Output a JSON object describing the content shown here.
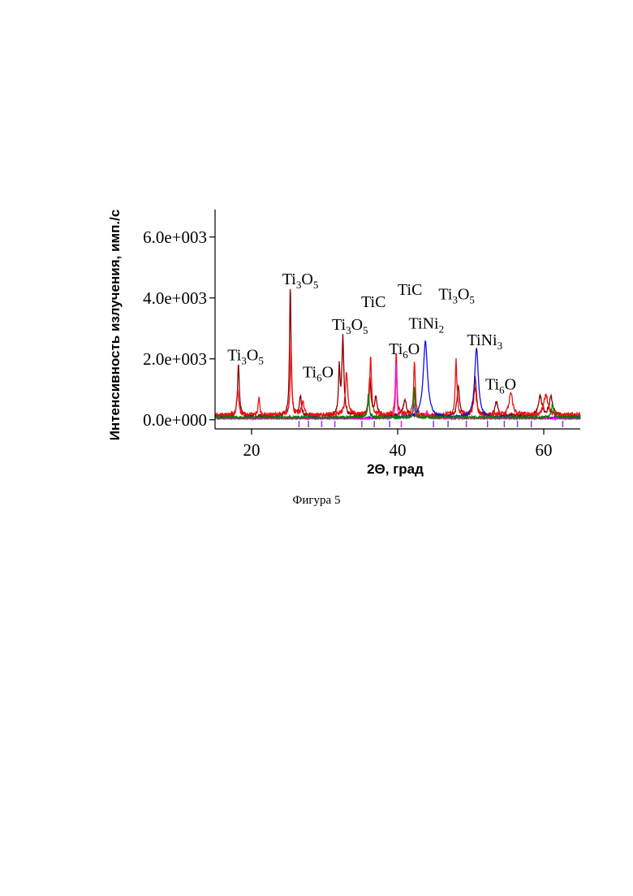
{
  "caption": "Фигура 5",
  "chart_data": {
    "type": "line",
    "xlabel": "2Θ, град",
    "ylabel": "Интенсивность излучения, имп./с",
    "xlim": [
      15,
      65
    ],
    "ylim": [
      -300,
      6900
    ],
    "x_ticks": [
      20,
      40,
      60
    ],
    "x_tick_labels": [
      "20",
      "40",
      "60"
    ],
    "y_ticks": [
      0,
      2000,
      4000,
      6000
    ],
    "y_tick_labels": [
      "0.0e+000",
      "2.0e+003",
      "4.0e+003",
      "6.0e+003"
    ],
    "grid": false,
    "colors": {
      "dark_red": "#8b0000",
      "red": "#ee1111",
      "blue": "#1010e0",
      "magenta": "#ff10d0",
      "green": "#008000",
      "purple": "#9933cc"
    },
    "series": [
      {
        "color_key": "dark_red",
        "baseline": 120,
        "peaks": [
          {
            "x": 18.2,
            "y": 1750,
            "w": 0.14
          },
          {
            "x": 25.3,
            "y": 4300,
            "w": 0.12
          },
          {
            "x": 26.7,
            "y": 700,
            "w": 0.15
          },
          {
            "x": 32.5,
            "y": 2550,
            "w": 0.16
          },
          {
            "x": 32.0,
            "y": 1550,
            "w": 0.12
          },
          {
            "x": 36.2,
            "y": 1200,
            "w": 0.18
          },
          {
            "x": 37.0,
            "y": 600,
            "w": 0.2
          },
          {
            "x": 41.0,
            "y": 500,
            "w": 0.3
          },
          {
            "x": 48.3,
            "y": 1000,
            "w": 0.2
          },
          {
            "x": 50.6,
            "y": 1300,
            "w": 0.2
          },
          {
            "x": 53.5,
            "y": 450,
            "w": 0.25
          },
          {
            "x": 59.5,
            "y": 650,
            "w": 0.3
          },
          {
            "x": 61.0,
            "y": 600,
            "w": 0.3
          }
        ]
      },
      {
        "color_key": "red",
        "baseline": 150,
        "peaks": [
          {
            "x": 18.1,
            "y": 900,
            "w": 0.15
          },
          {
            "x": 21.0,
            "y": 600,
            "w": 0.12
          },
          {
            "x": 25.4,
            "y": 2400,
            "w": 0.12
          },
          {
            "x": 27.0,
            "y": 450,
            "w": 0.2
          },
          {
            "x": 33.0,
            "y": 1400,
            "w": 0.2
          },
          {
            "x": 36.3,
            "y": 1900,
            "w": 0.15
          },
          {
            "x": 39.8,
            "y": 2100,
            "w": 0.12
          },
          {
            "x": 42.3,
            "y": 1850,
            "w": 0.12
          },
          {
            "x": 48.0,
            "y": 1800,
            "w": 0.14
          },
          {
            "x": 50.6,
            "y": 900,
            "w": 0.2
          },
          {
            "x": 55.5,
            "y": 700,
            "w": 0.3
          },
          {
            "x": 60.3,
            "y": 700,
            "w": 0.3
          }
        ]
      },
      {
        "color_key": "blue",
        "baseline": 60,
        "peaks": [
          {
            "x": 43.8,
            "y": 2500,
            "w": 0.35
          },
          {
            "x": 50.8,
            "y": 2300,
            "w": 0.3
          }
        ]
      },
      {
        "color_key": "magenta",
        "baseline": 40,
        "peaks": [
          {
            "x": 39.8,
            "y": 1900,
            "w": 0.1
          },
          {
            "x": 42.2,
            "y": 500,
            "w": 0.15
          },
          {
            "x": 44.0,
            "y": 250,
            "w": 0.2
          }
        ]
      },
      {
        "color_key": "green",
        "baseline": 80,
        "peaks": [
          {
            "x": 36.0,
            "y": 800,
            "w": 0.12
          },
          {
            "x": 42.3,
            "y": 1050,
            "w": 0.1
          },
          {
            "x": 61.2,
            "y": 450,
            "w": 0.15
          }
        ]
      }
    ],
    "reference_ticks": [
      {
        "x": 26.5,
        "color_key": "purple"
      },
      {
        "x": 27.8,
        "color_key": "purple"
      },
      {
        "x": 29.6,
        "color_key": "purple"
      },
      {
        "x": 31.4,
        "color_key": "purple"
      },
      {
        "x": 35.1,
        "color_key": "purple"
      },
      {
        "x": 36.8,
        "color_key": "purple"
      },
      {
        "x": 38.9,
        "color_key": "purple"
      },
      {
        "x": 40.5,
        "color_key": "magenta"
      },
      {
        "x": 44.9,
        "color_key": "purple"
      },
      {
        "x": 46.9,
        "color_key": "purple"
      },
      {
        "x": 49.4,
        "color_key": "purple"
      },
      {
        "x": 52.3,
        "color_key": "purple"
      },
      {
        "x": 54.6,
        "color_key": "purple"
      },
      {
        "x": 56.4,
        "color_key": "purple"
      },
      {
        "x": 58.3,
        "color_key": "purple"
      },
      {
        "x": 62.6,
        "color_key": "purple"
      }
    ],
    "annotations": [
      {
        "id": "ti3o5-a",
        "base": "Ti",
        "sub1": "3",
        "mid": "O",
        "sub2": "5",
        "x": 16.7,
        "y": 1950
      },
      {
        "id": "ti3o5-b",
        "base": "Ti",
        "sub1": "3",
        "mid": "O",
        "sub2": "5",
        "x": 24.2,
        "y": 4450
      },
      {
        "id": "ti6o-a",
        "base": "Ti",
        "sub1": "6",
        "mid": "O",
        "sub2": "",
        "x": 27.0,
        "y": 1400
      },
      {
        "id": "ti3o5-c",
        "base": "Ti",
        "sub1": "3",
        "mid": "O",
        "sub2": "5",
        "x": 31.0,
        "y": 2950
      },
      {
        "id": "tic-a",
        "base": "TiC",
        "sub1": "",
        "mid": "",
        "sub2": "",
        "x": 35.0,
        "y": 3700
      },
      {
        "id": "ti6o-b",
        "base": "Ti",
        "sub1": "6",
        "mid": "O",
        "sub2": "",
        "x": 38.8,
        "y": 2150
      },
      {
        "id": "tic-b",
        "base": "TiC",
        "sub1": "",
        "mid": "",
        "sub2": "",
        "x": 40.0,
        "y": 4100
      },
      {
        "id": "tini2",
        "base": "TiNi",
        "sub1": "2",
        "mid": "",
        "sub2": "",
        "x": 41.5,
        "y": 3000
      },
      {
        "id": "ti3o5-d",
        "base": "Ti",
        "sub1": "3",
        "mid": "O",
        "sub2": "5",
        "x": 45.6,
        "y": 3950
      },
      {
        "id": "tini3",
        "base": "TiNi",
        "sub1": "3",
        "mid": "",
        "sub2": "",
        "x": 49.5,
        "y": 2450
      },
      {
        "id": "ti6o-c",
        "base": "Ti",
        "sub1": "6",
        "mid": "O",
        "sub2": "",
        "x": 52.0,
        "y": 1000
      }
    ]
  }
}
